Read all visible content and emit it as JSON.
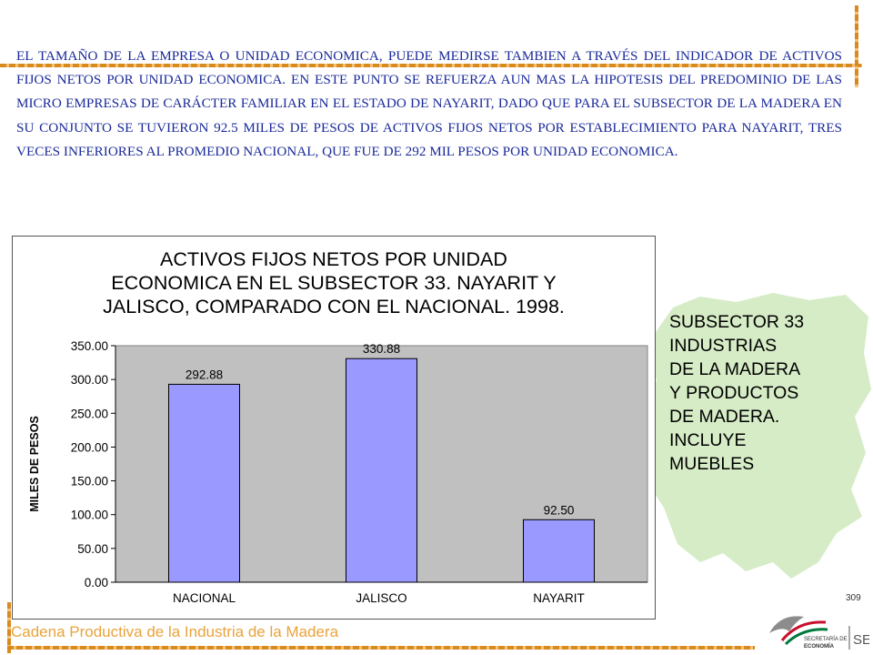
{
  "paragraph": "EL TAMAÑO DE LA EMPRESA O UNIDAD ECONOMICA, PUEDE MEDIRSE TAMBIEN A TRAVÉS DEL INDICADOR DE ACTIVOS FIJOS NETOS POR UNIDAD ECONOMICA. EN ESTE PUNTO SE REFUERZA AUN MAS LA HIPOTESIS DEL PREDOMINIO DE LAS MICRO EMPRESAS DE CARÁCTER FAMILIAR EN EL ESTADO DE NAYARIT, DADO QUE PARA EL SUBSECTOR DE LA MADERA EN SU CONJUNTO SE TUVIERON 92.5 MILES DE PESOS DE ACTIVOS FIJOS NETOS POR ESTABLECIMIENTO PARA NAYARIT, TRES VECES INFERIORES AL PROMEDIO NACIONAL, QUE FUE DE 292 MIL PESOS POR UNIDAD ECONOMICA.",
  "side_note": "SUBSECTOR 33\nINDUSTRIAS\nDE LA MADERA\nY PRODUCTOS\nDE MADERA.\nINCLUYE\nMUEBLES",
  "footer": {
    "text": "Cadena Productiva de la Industria de la Madera",
    "page_number": "309",
    "logo_text_1": "SECRETARÍA DE",
    "logo_text_2": "ECONOMÍA",
    "logo_abbr": "SE"
  },
  "colors": {
    "bar": "#9999ff",
    "plot_bg": "#c0c0c0",
    "text_blue": "#1a2a9a",
    "accent_orange": "#e8a33c",
    "map_green": "#d6ecc6"
  },
  "chart_data": {
    "type": "bar",
    "title": "ACTIVOS FIJOS NETOS POR UNIDAD\nECONOMICA EN EL SUBSECTOR 33. NAYARIT Y\nJALISCO, COMPARADO CON EL NACIONAL. 1998.",
    "categories": [
      "NACIONAL",
      "JALISCO",
      "NAYARIT"
    ],
    "values": [
      292.88,
      330.88,
      92.5
    ],
    "data_labels": [
      "292.88",
      "330.88",
      "92.50"
    ],
    "ylabel": "MILES DE PESOS",
    "xlabel": "",
    "ylim": [
      0,
      350
    ],
    "yticks": [
      "0.00",
      "50.00",
      "100.00",
      "150.00",
      "200.00",
      "250.00",
      "300.00",
      "350.00"
    ],
    "grid": false,
    "legend": "none"
  }
}
